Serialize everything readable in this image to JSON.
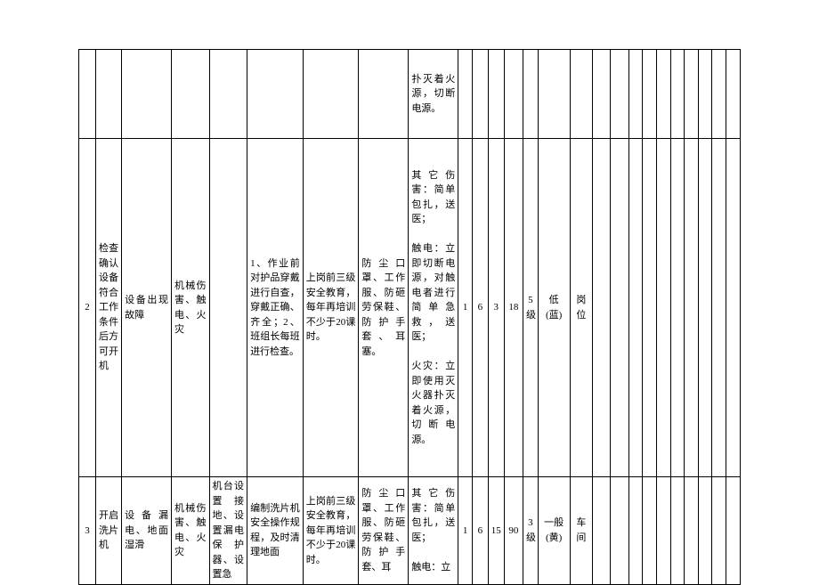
{
  "rows": [
    {
      "c6": "扑灭着火源，切断电源。"
    },
    {
      "c0": "2",
      "c1": "检查确认设备符合工作条件后方可开机",
      "c2a": "设备出现故障",
      "c2b": "机械伤害、触电、火灾",
      "c2c": "",
      "c3": "1、作业前对护品穿戴进行自查，穿戴正确、齐全；2、班组长每班进行检查。",
      "c4": "上岗前三级安全教育，每年再培训不少于20课时。",
      "c5": "防尘口罩、工作服、防砸劳保鞋、防护手套、耳塞。",
      "c6": "其它伤害：简单包扎，送医；\n\n触电：立即切断电源，对触电者进行简单急救，送医；\n\n火灾：立即使用灭火器扑灭着火源，切断电源。",
      "c7": "1",
      "c8": "6",
      "c9": "3",
      "c10": "18",
      "c11": "5级",
      "c12": "低(蓝)",
      "c13": "岗位"
    },
    {
      "c0": "3",
      "c1": "开启洗片机",
      "c2a": "设备漏电、地面湿滑",
      "c2b": "机械伤害、触电、火灾",
      "c2c": "机台设置接地、设置漏电保护器、设置急",
      "c3": "编制洗片机安全操作规程，及时清理地面",
      "c4": "上岗前三级安全教育，每年再培训不少于20课时。",
      "c5": "防尘口罩、工作服、防砸劳保鞋、防护手套、耳",
      "c6": "其它伤害：简单包扎，送医；\n\n触电：立",
      "c7": "1",
      "c8": "6",
      "c9": "15",
      "c10": "90",
      "c11": "3级",
      "c12": "一般(黄)",
      "c13": "车间"
    }
  ],
  "style": {
    "font_size_pt": 11,
    "border_color": "#000000",
    "background": "#ffffff"
  }
}
